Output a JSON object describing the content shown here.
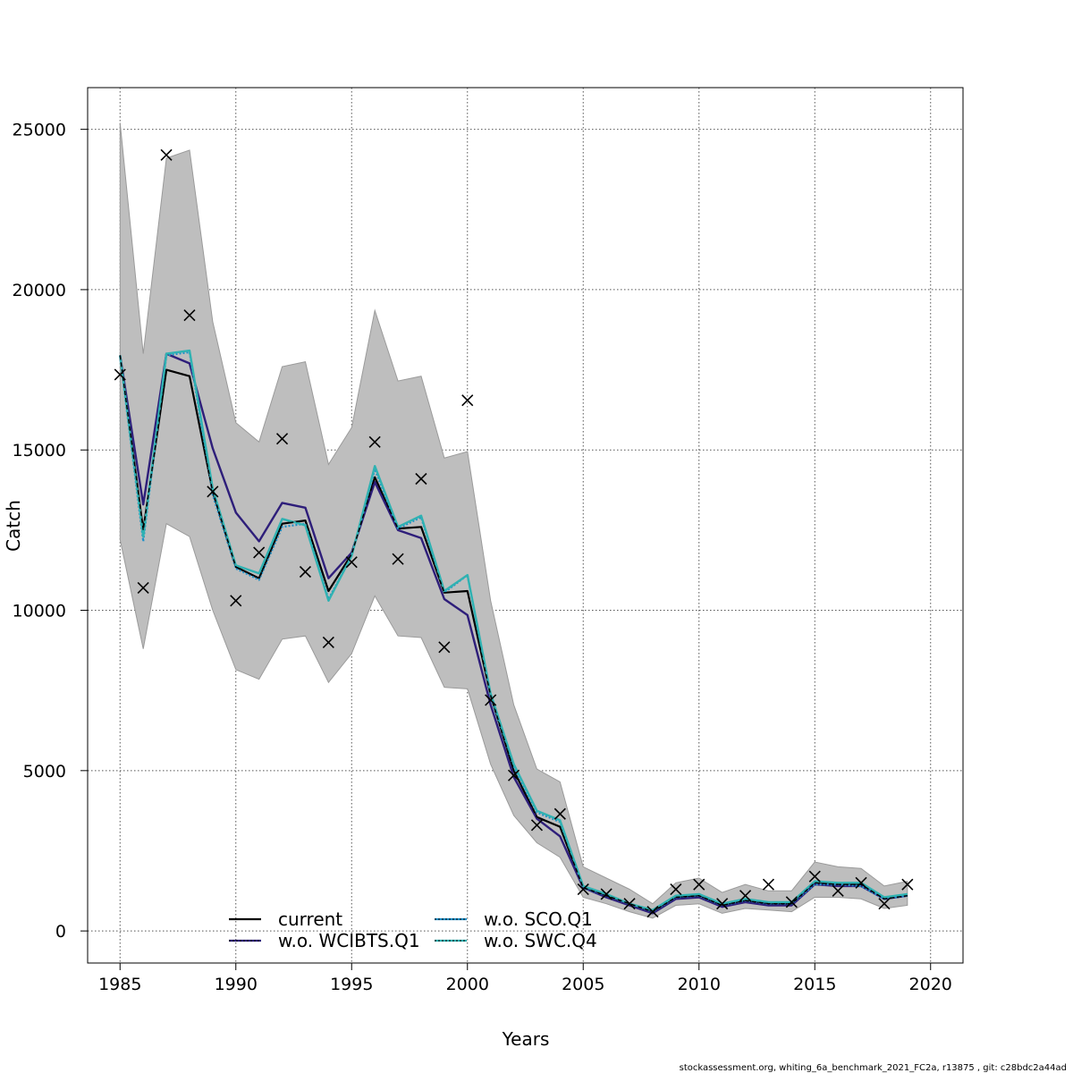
{
  "chart_data": {
    "type": "line",
    "xlabel": "Years",
    "ylabel": "Catch",
    "xlim": [
      1983.6,
      2021.4
    ],
    "ylim": [
      -1000,
      26300
    ],
    "xticks": [
      1985,
      1990,
      1995,
      2000,
      2005,
      2010,
      2015,
      2020
    ],
    "yticks": [
      0,
      5000,
      10000,
      15000,
      20000,
      25000
    ],
    "grid": true,
    "legend_position": "bottom-center",
    "colors": {
      "band": "#bebebe",
      "current": "#000000",
      "wcibts": "#2e1e7a",
      "sco": "#1e90c8",
      "swc": "#2fb2b2",
      "observed": "#000000"
    },
    "x": [
      1985,
      1986,
      1987,
      1988,
      1989,
      1990,
      1991,
      1992,
      1993,
      1994,
      1995,
      1996,
      1997,
      1998,
      1999,
      2000,
      2001,
      2002,
      2003,
      2004,
      2005,
      2006,
      2007,
      2008,
      2009,
      2010,
      2011,
      2012,
      2013,
      2014,
      2015,
      2016,
      2017,
      2018,
      2019
    ],
    "band": {
      "name": "confidence band",
      "lower": [
        12200,
        8800,
        12700,
        12300,
        10000,
        8150,
        7850,
        9100,
        9200,
        7750,
        8650,
        10450,
        9200,
        9150,
        7600,
        7550,
        5200,
        3600,
        2750,
        2300,
        1050,
        850,
        600,
        400,
        800,
        850,
        550,
        700,
        650,
        600,
        1050,
        1050,
        1000,
        700,
        800
      ],
      "upper": [
        25200,
        18000,
        24100,
        24350,
        19000,
        15850,
        15250,
        17600,
        17750,
        14550,
        15700,
        19350,
        17150,
        17300,
        14750,
        14950,
        10300,
        7050,
        5050,
        4650,
        2000,
        1650,
        1300,
        850,
        1500,
        1650,
        1200,
        1450,
        1250,
        1250,
        2150,
        2000,
        1950,
        1400,
        1550
      ]
    },
    "series": [
      {
        "name": "current",
        "values": [
          17950,
          12500,
          17500,
          17300,
          13700,
          11350,
          11000,
          12700,
          12800,
          10600,
          11750,
          14150,
          12550,
          12600,
          10550,
          10600,
          7350,
          5000,
          3550,
          3250,
          1350,
          1100,
          850,
          600,
          1050,
          1100,
          800,
          950,
          850,
          850,
          1500,
          1450,
          1450,
          1000,
          1100
        ]
      },
      {
        "name": "w.o. WCIBTS.Q1",
        "values": [
          17950,
          13300,
          18000,
          17700,
          15050,
          13050,
          12150,
          13350,
          13200,
          11000,
          11800,
          14000,
          12500,
          12250,
          10350,
          9850,
          7050,
          4800,
          3500,
          2950,
          1350,
          1050,
          800,
          550,
          1000,
          1050,
          750,
          900,
          800,
          800,
          1450,
          1400,
          1400,
          1000,
          1100
        ]
      },
      {
        "name": "w.o. SCO.Q1",
        "values": [
          17900,
          12150,
          17950,
          18050,
          13600,
          11300,
          10950,
          12600,
          12700,
          10350,
          11700,
          14400,
          12550,
          12900,
          10550,
          11100,
          7300,
          5100,
          3700,
          3400,
          1350,
          1100,
          850,
          600,
          1050,
          1100,
          800,
          950,
          850,
          850,
          1450,
          1450,
          1400,
          1000,
          1100
        ]
      },
      {
        "name": "w.o. SWC.Q4",
        "values": [
          17950,
          12300,
          18000,
          18100,
          13800,
          11400,
          11150,
          12850,
          12650,
          10300,
          11700,
          14500,
          12600,
          12950,
          10600,
          11100,
          7400,
          5200,
          3750,
          3450,
          1400,
          1150,
          850,
          650,
          1100,
          1150,
          850,
          1000,
          900,
          900,
          1550,
          1500,
          1500,
          1050,
          1150
        ]
      }
    ],
    "observed": {
      "name": "observations",
      "values": [
        17350,
        10700,
        24200,
        19200,
        13700,
        10300,
        11800,
        15350,
        11200,
        9000,
        11500,
        15250,
        11600,
        14100,
        8850,
        16550,
        7200,
        4850,
        3300,
        3650,
        1300,
        1150,
        850,
        600,
        1300,
        1450,
        850,
        1100,
        1450,
        900,
        1700,
        1250,
        1500,
        850,
        1450
      ]
    },
    "legend": [
      "current",
      "w.o. WCIBTS.Q1",
      "w.o. SCO.Q1",
      "w.o. SWC.Q4"
    ]
  },
  "footer": "stockassessment.org, whiting_6a_benchmark_2021_FC2a, r13875 , git: c28bdc2a44ad"
}
